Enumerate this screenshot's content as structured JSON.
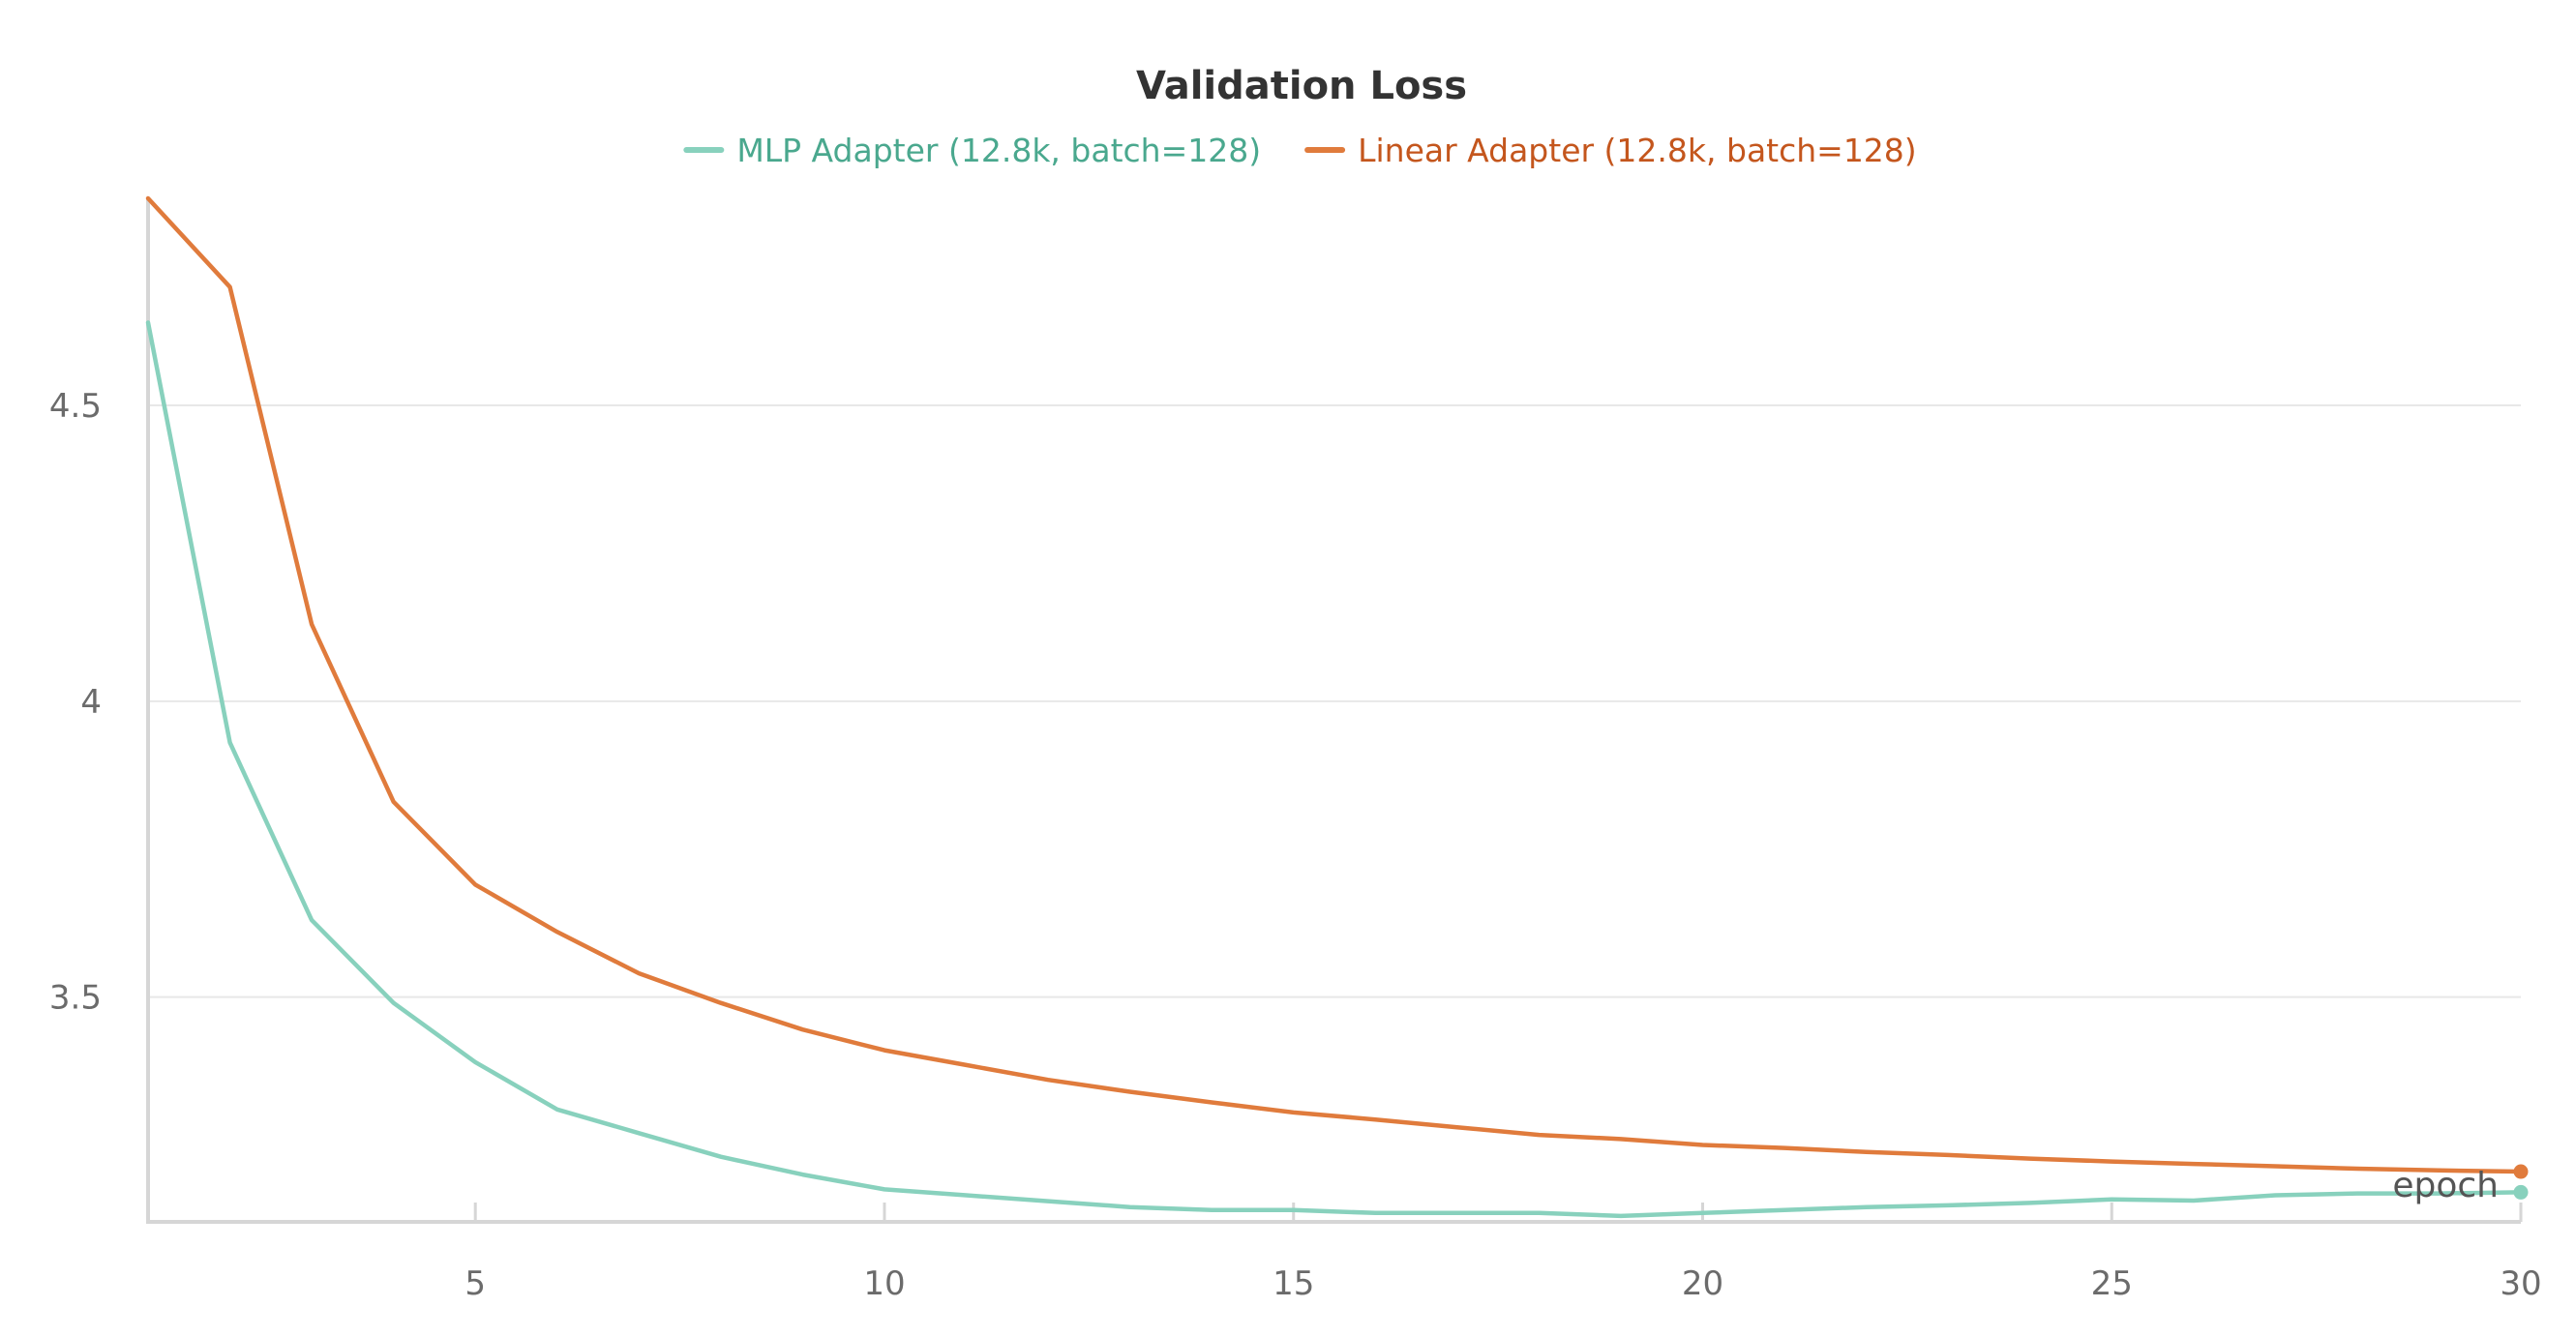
{
  "chart_data": {
    "type": "line",
    "title": "Validation Loss",
    "xlabel": "epoch",
    "ylabel": "",
    "xlim": [
      1,
      30
    ],
    "ylim": [
      3.12,
      4.85
    ],
    "x_ticks": [
      5,
      10,
      15,
      20,
      25,
      30
    ],
    "y_ticks": [
      3.5,
      4,
      4.5
    ],
    "y_tick_labels": [
      "3.5",
      "4",
      "4.5"
    ],
    "grid": true,
    "legend_position": "top-center",
    "x": [
      1,
      2,
      3,
      4,
      5,
      6,
      7,
      8,
      9,
      10,
      11,
      12,
      13,
      14,
      15,
      16,
      17,
      18,
      19,
      20,
      21,
      22,
      23,
      24,
      25,
      26,
      27,
      28,
      29,
      30
    ],
    "series": [
      {
        "name": "MLP Adapter (12.8k, batch=128)",
        "color": "#88d1bd",
        "label_color": "#4aa88e",
        "values": [
          4.64,
          3.93,
          3.63,
          3.49,
          3.39,
          3.31,
          3.27,
          3.23,
          3.2,
          3.175,
          3.165,
          3.155,
          3.145,
          3.14,
          3.14,
          3.135,
          3.135,
          3.135,
          3.13,
          3.135,
          3.14,
          3.145,
          3.148,
          3.152,
          3.158,
          3.156,
          3.165,
          3.168,
          3.168,
          3.17
        ]
      },
      {
        "name": "Linear Adapter (12.8k, batch=128)",
        "color": "#e07b3c",
        "label_color": "#c4561d",
        "values": [
          4.85,
          4.7,
          4.13,
          3.83,
          3.69,
          3.61,
          3.54,
          3.49,
          3.445,
          3.41,
          3.385,
          3.36,
          3.34,
          3.322,
          3.305,
          3.293,
          3.28,
          3.267,
          3.26,
          3.25,
          3.245,
          3.238,
          3.233,
          3.227,
          3.222,
          3.218,
          3.214,
          3.21,
          3.207,
          3.205
        ]
      }
    ]
  }
}
